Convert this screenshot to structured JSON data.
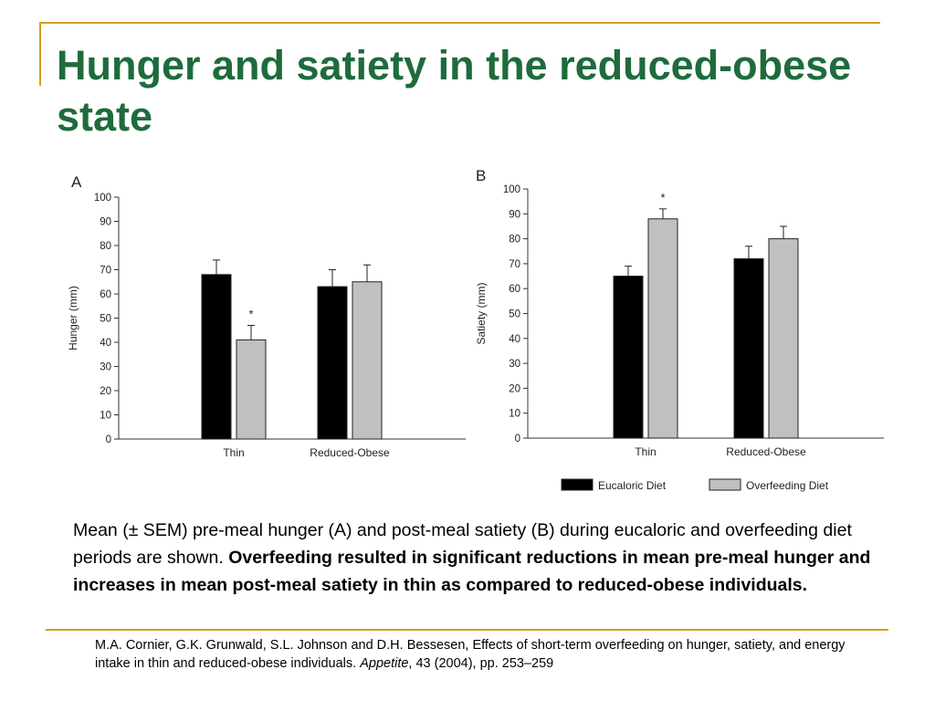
{
  "slide": {
    "title": "Hunger and satiety in the reduced-obese state",
    "caption_plain": "Mean (± SEM) pre-meal hunger (A) and post-meal satiety (B) during eucaloric and overfeeding diet periods are shown. ",
    "caption_bold": "Overfeeding resulted in significant reductions in mean pre-meal hunger and increases in mean post-meal satiety in thin as compared to reduced-obese individuals.",
    "citation_pre": "M.A. Cornier, G.K. Grunwald, S.L. Johnson and D.H. Bessesen, Effects of short-term overfeeding on hunger, satiety, and energy intake in thin and reduced-obese individuals. ",
    "citation_journal": "Appetite",
    "citation_post": ",  43  (2004), pp. 253–259",
    "accent_color": "#d4a017",
    "title_color": "#1e6b3c"
  },
  "chart_data": [
    {
      "type": "bar",
      "panel_label": "A",
      "ylabel": "Hunger (mm)",
      "ylim": [
        0,
        100
      ],
      "yticks": [
        0,
        10,
        20,
        30,
        40,
        50,
        60,
        70,
        80,
        90,
        100
      ],
      "categories": [
        "Thin",
        "Reduced-Obese"
      ],
      "series": [
        {
          "name": "Eucaloric Diet",
          "color": "#000000",
          "values": [
            68,
            63
          ],
          "errors": [
            6,
            7
          ]
        },
        {
          "name": "Overfeeding Diet",
          "color": "#c0c0c0",
          "values": [
            41,
            65
          ],
          "errors": [
            6,
            7
          ]
        }
      ],
      "annotations": [
        {
          "text": "*",
          "category": "Thin",
          "series": "Overfeeding Diet"
        }
      ]
    },
    {
      "type": "bar",
      "panel_label": "B",
      "ylabel": "Satiety (mm)",
      "ylim": [
        0,
        100
      ],
      "yticks": [
        0,
        10,
        20,
        30,
        40,
        50,
        60,
        70,
        80,
        90,
        100
      ],
      "categories": [
        "Thin",
        "Reduced-Obese"
      ],
      "series": [
        {
          "name": "Eucaloric Diet",
          "color": "#000000",
          "values": [
            65,
            72
          ],
          "errors": [
            4,
            5
          ]
        },
        {
          "name": "Overfeeding Diet",
          "color": "#c0c0c0",
          "values": [
            88,
            80
          ],
          "errors": [
            4,
            5
          ]
        }
      ],
      "annotations": [
        {
          "text": "*",
          "category": "Thin",
          "series": "Overfeeding Diet"
        }
      ],
      "legend": {
        "placement": "bottom-right",
        "entries": [
          "Eucaloric Diet",
          "Overfeeding Diet"
        ]
      }
    }
  ]
}
